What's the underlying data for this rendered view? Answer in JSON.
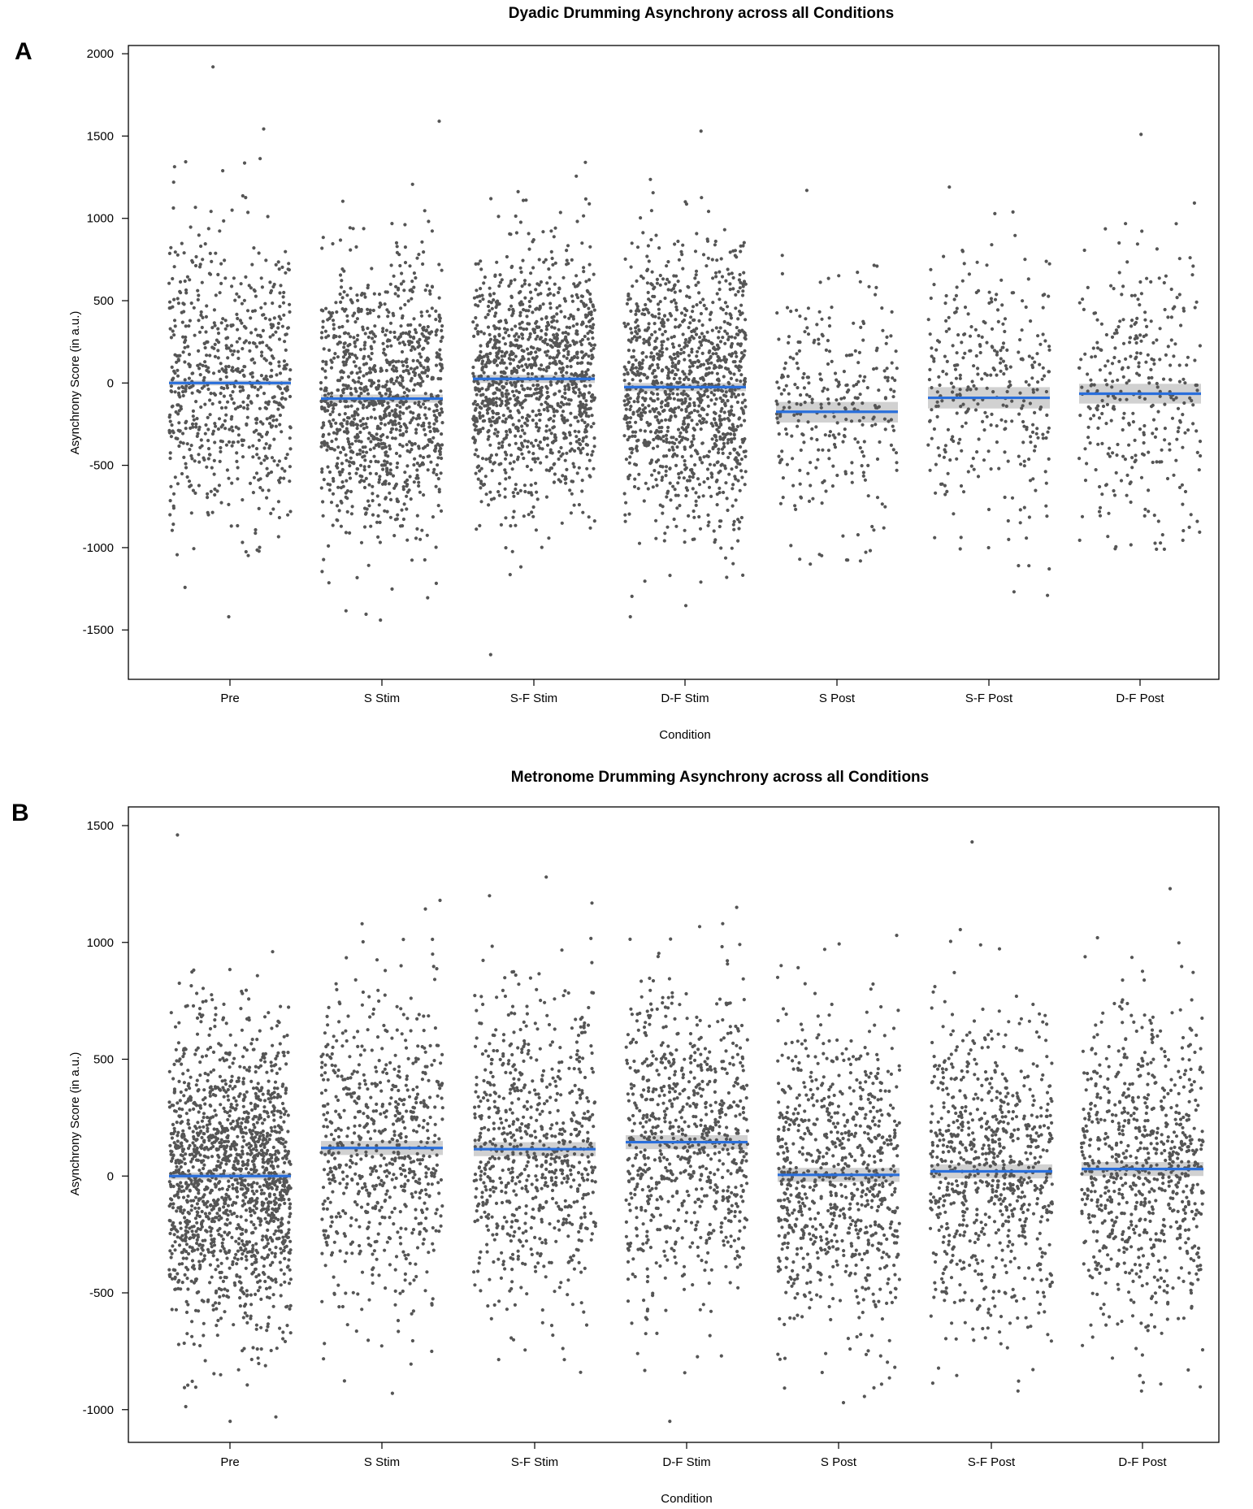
{
  "chart_data": [
    {
      "panel": "A",
      "type": "scatter",
      "title": "Dyadic Drumming Asynchrony across all Conditions",
      "xlabel": "Condition",
      "ylabel": "Asynchrony Score (in a.u.)",
      "ylim": [
        -1800,
        2050
      ],
      "yticks": [
        2000,
        1500,
        1000,
        500,
        0,
        -500,
        -1000,
        -1500
      ],
      "categories": [
        "Pre",
        "S Stim",
        "S-F Stim",
        "D-F Stim",
        "S Post",
        "S-F Post",
        "D-F Post"
      ],
      "series": [
        {
          "name": "Pre",
          "mean": 0,
          "ci": [
            -15,
            15
          ],
          "n": 700,
          "min": -1420,
          "max": 1920,
          "sd": 470
        },
        {
          "name": "S Stim",
          "mean": -95,
          "ci": [
            -120,
            -70
          ],
          "n": 1100,
          "min": -1440,
          "max": 1590,
          "sd": 420
        },
        {
          "name": "S-F Stim",
          "mean": 25,
          "ci": [
            0,
            50
          ],
          "n": 1200,
          "min": -1650,
          "max": 1340,
          "sd": 380
        },
        {
          "name": "D-F Stim",
          "mean": -25,
          "ci": [
            -50,
            0
          ],
          "n": 1200,
          "min": -1420,
          "max": 1530,
          "sd": 420
        },
        {
          "name": "S Post",
          "mean": -175,
          "ci": [
            -240,
            -115
          ],
          "n": 300,
          "min": -1100,
          "max": 1170,
          "sd": 400
        },
        {
          "name": "S-F Post",
          "mean": -90,
          "ci": [
            -155,
            -25
          ],
          "n": 330,
          "min": -1290,
          "max": 1190,
          "sd": 430
        },
        {
          "name": "D-F Post",
          "mean": -65,
          "ci": [
            -125,
            -5
          ],
          "n": 330,
          "min": -1010,
          "max": 1510,
          "sd": 420
        }
      ]
    },
    {
      "panel": "B",
      "type": "scatter",
      "title": "Metronome Drumming Asynchrony across all Conditions",
      "xlabel": "Condition",
      "ylabel": "Asynchrony Score (in a.u.)",
      "ylim": [
        -1140,
        1580
      ],
      "yticks": [
        1500,
        1000,
        500,
        0,
        -500,
        -1000
      ],
      "categories": [
        "Pre",
        "S Stim",
        "S-F Stim",
        "D-F Stim",
        "S Post",
        "S-F Post",
        "D-F Post"
      ],
      "series": [
        {
          "name": "Pre",
          "mean": 0,
          "ci": [
            -15,
            15
          ],
          "n": 1600,
          "min": -1050,
          "max": 1460,
          "sd": 320
        },
        {
          "name": "S Stim",
          "mean": 120,
          "ci": [
            90,
            150
          ],
          "n": 700,
          "min": -930,
          "max": 1180,
          "sd": 350
        },
        {
          "name": "S-F Stim",
          "mean": 115,
          "ci": [
            85,
            145
          ],
          "n": 750,
          "min": -840,
          "max": 1280,
          "sd": 330
        },
        {
          "name": "D-F Stim",
          "mean": 145,
          "ci": [
            115,
            175
          ],
          "n": 800,
          "min": -1050,
          "max": 1150,
          "sd": 340
        },
        {
          "name": "S Post",
          "mean": 5,
          "ci": [
            -25,
            35
          ],
          "n": 850,
          "min": -970,
          "max": 1030,
          "sd": 330
        },
        {
          "name": "S-F Post",
          "mean": 20,
          "ci": [
            -10,
            50
          ],
          "n": 800,
          "min": -920,
          "max": 1430,
          "sd": 330
        },
        {
          "name": "D-F Post",
          "mean": 30,
          "ci": [
            0,
            60
          ],
          "n": 800,
          "min": -920,
          "max": 1230,
          "sd": 340
        }
      ]
    }
  ],
  "colors": {
    "point": "#555555",
    "mean_line": "#2a6fdb",
    "ci_band": "#c9c9c9",
    "axis": "#000000"
  }
}
